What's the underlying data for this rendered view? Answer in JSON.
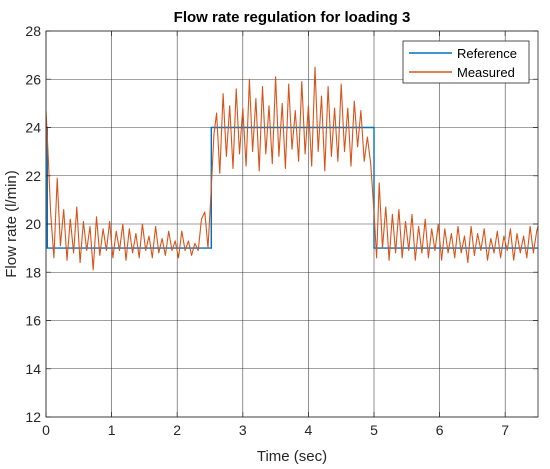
{
  "chart_data": {
    "type": "line",
    "title": "Flow rate regulation for loading 3",
    "xlabel": "Time (sec)",
    "ylabel": "Flow rate (l/min)",
    "xlim": [
      0,
      7.5
    ],
    "ylim": [
      12,
      28
    ],
    "xticks": [
      "0",
      "1",
      "2",
      "3",
      "4",
      "5",
      "6",
      "7"
    ],
    "yticks": [
      "12",
      "14",
      "16",
      "18",
      "20",
      "22",
      "24",
      "26",
      "28"
    ],
    "grid": true,
    "legend_position": "top-right",
    "colors": {
      "reference": "#0072BD",
      "measured": "#D95319",
      "grid": "#262626"
    },
    "series": [
      {
        "name": "Reference",
        "x": [
          0,
          0.02,
          0.02,
          2.52,
          2.52,
          5.0,
          5.0,
          7.5
        ],
        "y": [
          24,
          24,
          19,
          19,
          24,
          24,
          19,
          19
        ]
      },
      {
        "name": "Measured",
        "x": [
          0,
          0.03,
          0.07,
          0.12,
          0.17,
          0.22,
          0.27,
          0.32,
          0.37,
          0.42,
          0.47,
          0.52,
          0.57,
          0.62,
          0.67,
          0.72,
          0.77,
          0.82,
          0.87,
          0.92,
          0.97,
          1.02,
          1.07,
          1.12,
          1.17,
          1.22,
          1.27,
          1.32,
          1.37,
          1.42,
          1.47,
          1.52,
          1.57,
          1.62,
          1.67,
          1.72,
          1.77,
          1.82,
          1.87,
          1.92,
          1.97,
          2.02,
          2.07,
          2.12,
          2.17,
          2.22,
          2.27,
          2.32,
          2.37,
          2.42,
          2.47,
          2.52,
          2.56,
          2.6,
          2.65,
          2.7,
          2.75,
          2.8,
          2.85,
          2.9,
          2.95,
          3.0,
          3.05,
          3.1,
          3.15,
          3.2,
          3.25,
          3.3,
          3.35,
          3.4,
          3.45,
          3.5,
          3.55,
          3.6,
          3.65,
          3.7,
          3.75,
          3.8,
          3.85,
          3.9,
          3.95,
          4.0,
          4.05,
          4.1,
          4.15,
          4.2,
          4.25,
          4.3,
          4.35,
          4.4,
          4.45,
          4.5,
          4.55,
          4.6,
          4.65,
          4.7,
          4.75,
          4.8,
          4.85,
          4.9,
          4.95,
          5.0,
          5.04,
          5.08,
          5.13,
          5.18,
          5.23,
          5.28,
          5.33,
          5.38,
          5.43,
          5.48,
          5.53,
          5.58,
          5.63,
          5.68,
          5.73,
          5.78,
          5.83,
          5.88,
          5.93,
          5.98,
          6.03,
          6.08,
          6.13,
          6.18,
          6.23,
          6.28,
          6.33,
          6.38,
          6.43,
          6.48,
          6.53,
          6.58,
          6.63,
          6.68,
          6.73,
          6.78,
          6.83,
          6.88,
          6.93,
          6.98,
          7.03,
          7.08,
          7.13,
          7.18,
          7.23,
          7.28,
          7.33,
          7.38,
          7.43,
          7.48,
          7.5
        ],
        "y": [
          24.7,
          23.0,
          20.5,
          18.6,
          21.9,
          19.1,
          20.6,
          18.5,
          20.2,
          18.8,
          20.7,
          18.4,
          20.1,
          18.9,
          19.9,
          18.1,
          20.3,
          18.7,
          19.8,
          18.9,
          20.1,
          18.6,
          19.7,
          18.9,
          20.0,
          18.5,
          19.8,
          18.8,
          19.6,
          18.6,
          20.0,
          18.9,
          19.5,
          18.6,
          19.9,
          18.8,
          19.4,
          18.7,
          19.7,
          18.9,
          19.3,
          18.6,
          19.7,
          18.9,
          19.3,
          18.7,
          19.2,
          18.9,
          20.2,
          20.5,
          19.0,
          21.5,
          23.7,
          24.6,
          22.1,
          25.4,
          22.8,
          24.9,
          22.3,
          25.6,
          22.9,
          24.8,
          22.4,
          26.0,
          23.0,
          25.2,
          22.2,
          25.7,
          22.9,
          24.9,
          22.5,
          26.1,
          22.8,
          25.0,
          22.3,
          25.8,
          23.1,
          24.7,
          22.6,
          25.9,
          22.9,
          24.9,
          22.4,
          26.5,
          23.0,
          25.3,
          22.2,
          25.7,
          22.8,
          24.8,
          22.6,
          25.8,
          23.0,
          24.8,
          22.4,
          25.1,
          23.2,
          24.7,
          22.6,
          23.6,
          22.5,
          20.5,
          18.6,
          21.7,
          19.0,
          20.7,
          18.5,
          20.4,
          18.8,
          20.6,
          18.6,
          20.1,
          18.9,
          20.4,
          18.5,
          19.9,
          18.8,
          20.2,
          18.6,
          19.8,
          18.9,
          20.0,
          18.5,
          19.8,
          18.8,
          19.6,
          18.6,
          19.9,
          18.8,
          19.5,
          18.4,
          19.9,
          18.7,
          19.6,
          18.9,
          19.8,
          18.5,
          19.4,
          18.8,
          19.7,
          18.6,
          19.5,
          18.9,
          19.8,
          18.5,
          19.6,
          18.8,
          19.5,
          18.6,
          19.9,
          18.8,
          19.7,
          19.9
        ]
      }
    ]
  }
}
